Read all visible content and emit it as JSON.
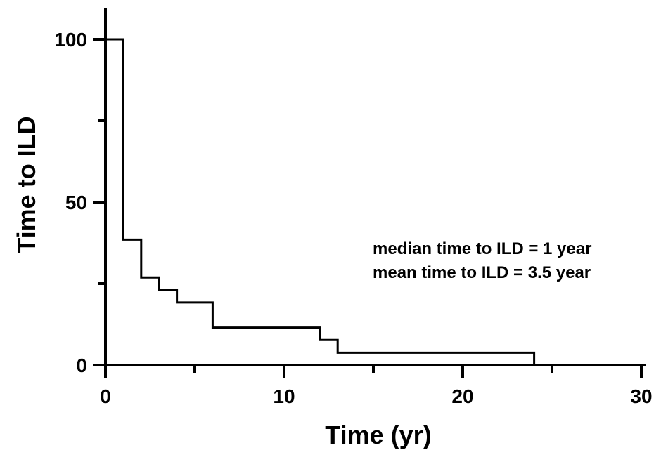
{
  "chart_data": {
    "type": "line",
    "subtype": "step",
    "title": "",
    "xlabel": "Time (yr)",
    "ylabel": "Time to ILD",
    "xlim": [
      0,
      30
    ],
    "ylim": [
      0,
      100
    ],
    "x_ticks": [
      0,
      10,
      20,
      30
    ],
    "x_minor_ticks": [
      5,
      15,
      25
    ],
    "y_ticks": [
      0,
      50,
      100
    ],
    "y_minor_ticks": [
      25,
      75
    ],
    "grid": false,
    "legend": "none",
    "line_color": "#000000",
    "series": [
      {
        "x": [
          0,
          1,
          1,
          2,
          2,
          3,
          3,
          4,
          4,
          6,
          6,
          12,
          12,
          13,
          13,
          24,
          24
        ],
        "y": [
          100,
          100,
          38.5,
          38.5,
          26.9,
          26.9,
          23.1,
          23.1,
          19.2,
          19.2,
          11.5,
          11.5,
          7.7,
          7.7,
          3.8,
          3.8,
          0
        ]
      }
    ],
    "annotations": [
      "median time to ILD = 1 year",
      "mean time to ILD = 3.5 year"
    ]
  }
}
